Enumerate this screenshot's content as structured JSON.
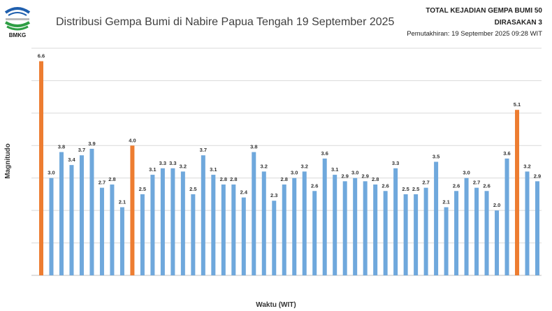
{
  "header": {
    "logo_text": "BMKG",
    "info_total": "TOTAL KEJADIAN GEMPA BUMI 50",
    "info_felt": "DIRASAKAN 3",
    "info_update": "Pemutakhiran: 19 September 2025 09:28 WIT"
  },
  "chart_data": {
    "type": "bar",
    "title": "Distribusi Gempa Bumi di Nabire Papua Tengah 19  September 2025",
    "xlabel": "Waktu (WIT)",
    "ylabel": "Magnitudo",
    "ylim": [
      0,
      7
    ],
    "grid": true,
    "values": [
      6.6,
      3.0,
      3.8,
      3.4,
      3.7,
      3.9,
      2.7,
      2.8,
      2.1,
      4.0,
      2.5,
      3.1,
      3.3,
      3.3,
      3.2,
      2.5,
      3.7,
      3.1,
      2.8,
      2.8,
      2.4,
      3.8,
      3.2,
      2.3,
      2.8,
      3.0,
      3.2,
      2.6,
      3.6,
      3.1,
      2.9,
      3.0,
      2.9,
      2.8,
      2.6,
      3.3,
      2.5,
      2.5,
      2.7,
      3.5,
      2.1,
      2.6,
      3.0,
      2.7,
      2.6,
      2.0,
      3.6,
      5.1,
      3.2,
      2.9
    ],
    "felt_indices": [
      0,
      9,
      47
    ],
    "colors": {
      "normal": "#6fa8dc",
      "felt": "#ed7d31",
      "grid": "#d9d9d9"
    }
  }
}
